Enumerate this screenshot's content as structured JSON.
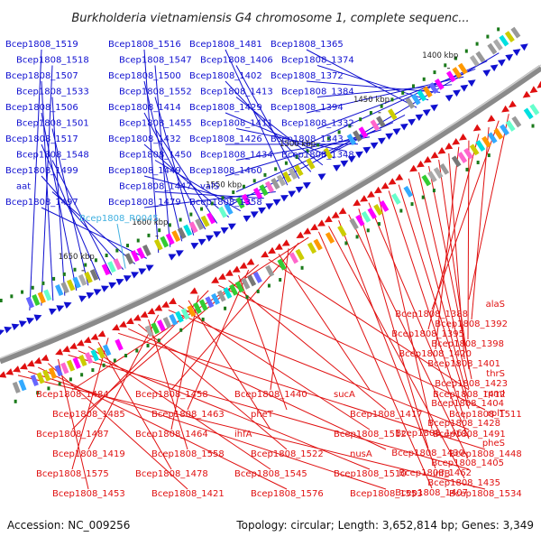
{
  "title": "Burkholderia vietnamiensis G4 chromosome 1, complete sequenc...",
  "footer": {
    "accession": "Accession: NC_009256",
    "topology": "Topology: circular; Length: 3,652,814 bp; Genes: 3,349"
  },
  "colors": {
    "forward": "#1010d0",
    "reverse": "#e01010",
    "rna": "#40b0e0",
    "backbone": "#888888",
    "tick": "#1a7a1a"
  },
  "scale_labels": [
    "1400 kbp",
    "1450 kbp",
    "1500 kbp",
    "1550 kbp",
    "1600 kbp",
    "1650 kbp"
  ],
  "forward_genes": [
    "Bcep1808_1519",
    "Bcep1808_1518",
    "Bcep1808_1507",
    "Bcep1808_1533",
    "Bcep1808_1506",
    "Bcep1808_1501",
    "Bcep1808_1517",
    "Bcep1808_1548",
    "Bcep1808_1499",
    "aat",
    "Bcep1808_1497",
    "Bcep1808_1516",
    "Bcep1808_1547",
    "Bcep1808_1500",
    "Bcep1808_1552",
    "Bcep1808_1414",
    "Bcep1808_1455",
    "Bcep1808_1432",
    "Bcep1808_1450",
    "Bcep1808_1449",
    "Bcep1808_1447",
    "Bcep1808_1479",
    "Bcep1808_1481",
    "Bcep1808_1406",
    "Bcep1808_1402",
    "Bcep1808_1413",
    "Bcep1808_1429",
    "Bcep1808_1411",
    "Bcep1808_1426",
    "Bcep1808_1434",
    "Bcep1808_1460",
    "valS",
    "Bcep1808_1358",
    "Bcep1808_1365",
    "Bcep1808_1374",
    "Bcep1808_1372",
    "Bcep1808_1384",
    "Bcep1808_1394",
    "Bcep1808_1332",
    "Bcep1808_1343",
    "Bcep1808_1348"
  ],
  "rna_genes": [
    "Bcep1808_R0045"
  ],
  "reverse_genes": [
    "alaS",
    "Bcep1808_1388",
    "Bcep1808_1392",
    "Bcep1808_1395",
    "Bcep1808_1398",
    "Bcep1808_1420",
    "Bcep1808_1401",
    "thrS",
    "Bcep1808_1423",
    "rpmI",
    "Bcep1808_1404",
    "rplT",
    "Bcep1808_1428",
    "Bcep1808_1461",
    "pheS",
    "Bcep1808_1430",
    "Bcep1808_1405",
    "Bcep1808_1462",
    "Bcep1808_1435",
    "Bcep1808_1407",
    "Bcep1808_1484",
    "Bcep1808_1458",
    "Bcep1808_1440",
    "sucA",
    "Bcep1808_1412",
    "Bcep1808_1485",
    "Bcep1808_1463",
    "pheT",
    "Bcep1808_1417",
    "Bcep1808_1511",
    "Bcep1808_1487",
    "Bcep1808_1464",
    "ihfA",
    "Bcep1808_1512",
    "Bcep1808_1491",
    "Bcep1808_1419",
    "Bcep1808_1558",
    "Bcep1808_1522",
    "nusA",
    "Bcep1808_1448",
    "Bcep1808_1575",
    "Bcep1808_1478",
    "Bcep1808_1545",
    "Bcep1808_1510",
    "infB",
    "Bcep1808_1453",
    "Bcep1808_1421",
    "Bcep1808_1576",
    "Bcep1808_1553",
    "Bcep1808_1534"
  ]
}
